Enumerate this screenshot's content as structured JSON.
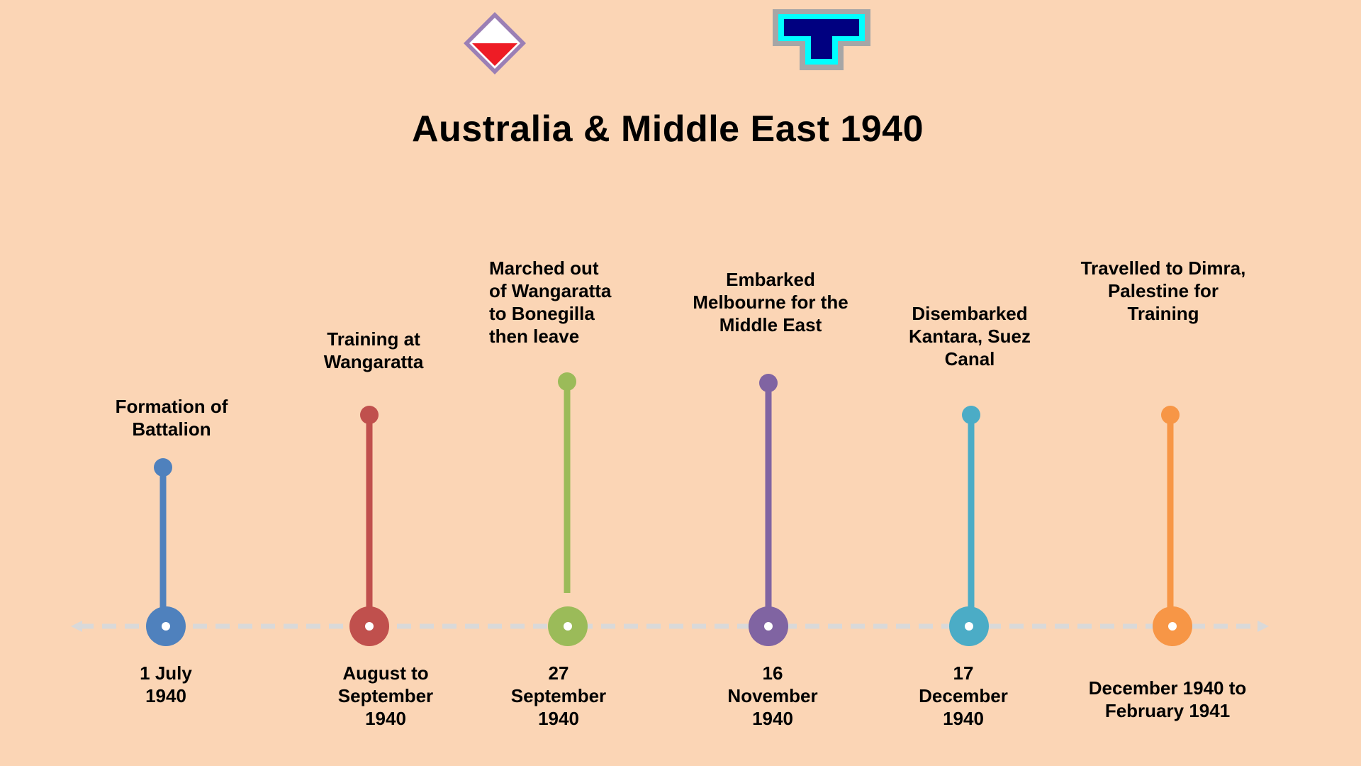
{
  "title": "Australia & Middle East 1940",
  "colors": {
    "background": "#fbd5b5",
    "axis": "#d9d9d9"
  },
  "logos": [
    {
      "name": "diamond-unit-patch-icon",
      "colors": [
        "#9b7fb5",
        "#ffffff",
        "#ee1c25"
      ]
    },
    {
      "name": "t-shape-unit-patch-icon",
      "colors": [
        "#a6a6a6",
        "#00ffff",
        "#000080"
      ]
    }
  ],
  "events": [
    {
      "label": "Formation of\nBattalion",
      "date": "1 July\n1940",
      "color": "#4f81bd"
    },
    {
      "label": "Training at\nWangaratta",
      "date": "August to\nSeptember\n1940",
      "color": "#c0504d"
    },
    {
      "label": "Marched out\nof Wangaratta\nto Bonegilla\nthen leave",
      "date": "27\nSeptember\n1940",
      "color": "#9bbb59"
    },
    {
      "label": "Embarked\nMelbourne for the\nMiddle East",
      "date": "16\nNovember\n1940",
      "color": "#8064a2"
    },
    {
      "label": "Disembarked\nKantara, Suez\nCanal",
      "date": "17\nDecember\n1940",
      "color": "#4bacc6"
    },
    {
      "label": "Travelled to Dimra,\nPalestine for\nTraining",
      "date": "December 1940 to\nFebruary 1941",
      "color": "#f79646"
    }
  ]
}
